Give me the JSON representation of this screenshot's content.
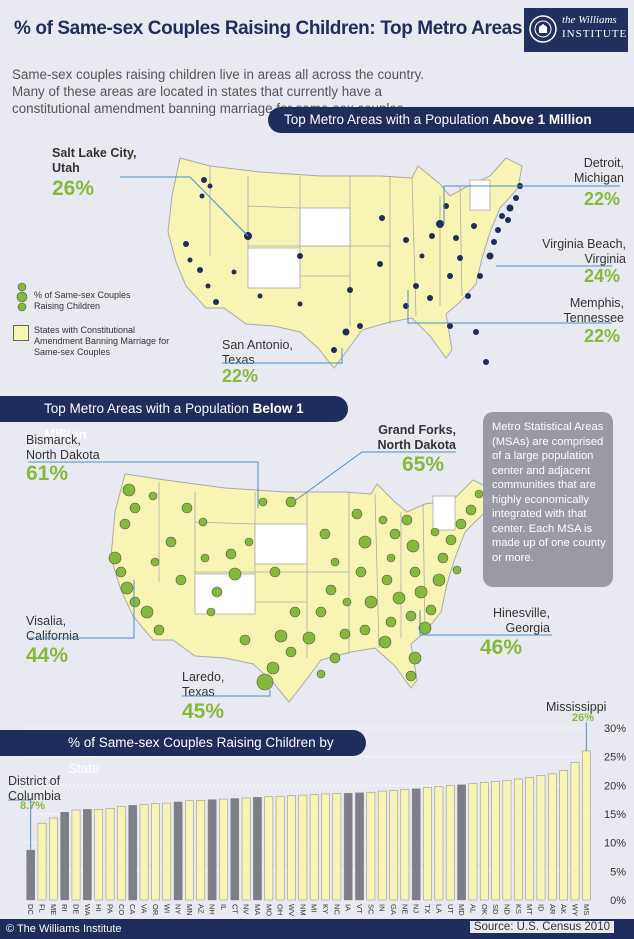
{
  "header": {
    "title": "% of Same-sex Couples Raising Children: Top Metro Areas (MSAs)",
    "logo_line1": "the Williams",
    "logo_line2": "INSTITUTE"
  },
  "intro": "Same-sex couples raising children live in areas all across the country. Many of these areas are located in states that currently have a constitutional amendment banning marriage for same-sex couples.",
  "section_above": {
    "label_prefix": "Top Metro Areas with a Population ",
    "label_bold": "Above 1 Million",
    "callouts": [
      {
        "city_line1": "Salt Lake City,",
        "city_line2": "Utah",
        "pct": "26%"
      },
      {
        "city_line1": "Detroit,",
        "city_line2": "Michigan",
        "pct": "22%"
      },
      {
        "city_line1": "Virginia Beach,",
        "city_line2": "Virginia",
        "pct": "24%"
      },
      {
        "city_line1": "Memphis,",
        "city_line2": "Tennessee",
        "pct": "22%"
      },
      {
        "city_line1": "San Antonio,",
        "city_line2": "Texas",
        "pct": "22%"
      }
    ]
  },
  "legend": {
    "dots_line1": "% of Same-sex Couples",
    "dots_line2": "Raising Children",
    "states_line1": "States with Constitutional",
    "states_line2": "Amendment Banning Marriage for",
    "states_line3": "Same-sex Couples"
  },
  "section_below": {
    "label_prefix": "Top Metro Areas with a Population ",
    "label_bold": "Below 1 Million",
    "callouts": [
      {
        "city_line1": "Bismarck,",
        "city_line2": "North Dakota",
        "pct": "61%"
      },
      {
        "city_line1": "Grand Forks,",
        "city_line2": "North Dakota",
        "pct": "65%"
      },
      {
        "city_line1": "Visalia,",
        "city_line2": "California",
        "pct": "44%"
      },
      {
        "city_line1": "Hinesville,",
        "city_line2": "Georgia",
        "pct": "46%"
      },
      {
        "city_line1": "Laredo,",
        "city_line2": "Texas",
        "pct": "45%"
      }
    ]
  },
  "msa_note": "Metro Statistical Areas (MSAs) are comprised of a large population center and adjacent communities that are highly economically integrated with that center. Each MSA is made up of one county or more.",
  "colors": {
    "navy": "#1f2d5c",
    "green": "#86b83c",
    "map_fill": "#f8f5b4",
    "bar_yellow": "#f8f5b4",
    "bar_gray": "#7e7e86"
  },
  "chart_data": {
    "type": "bar",
    "title": "% of Same-sex Couples Raising Children by State",
    "categories": [
      "DC",
      "FL",
      "ME",
      "RI",
      "DE",
      "WA",
      "HI",
      "PA",
      "CO",
      "CA",
      "VA",
      "OR",
      "WI",
      "NY",
      "MN",
      "AZ",
      "NH",
      "IL",
      "CT",
      "NV",
      "MA",
      "MO",
      "OH",
      "WV",
      "NM",
      "MI",
      "KY",
      "NC",
      "IA",
      "VT",
      "SC",
      "IN",
      "GA",
      "NE",
      "NJ",
      "TX",
      "LA",
      "UT",
      "MD",
      "AL",
      "OK",
      "SD",
      "ND",
      "KS",
      "MT",
      "ID",
      "AR",
      "AK",
      "WY",
      "MS"
    ],
    "values": [
      8.7,
      13.4,
      14.3,
      15.3,
      15.7,
      15.8,
      15.8,
      16.0,
      16.3,
      16.5,
      16.7,
      16.8,
      16.9,
      17.1,
      17.3,
      17.4,
      17.5,
      17.6,
      17.7,
      17.8,
      17.9,
      18.0,
      18.1,
      18.2,
      18.3,
      18.4,
      18.5,
      18.6,
      18.6,
      18.7,
      18.8,
      19.0,
      19.1,
      19.3,
      19.4,
      19.6,
      19.8,
      20.0,
      20.1,
      20.3,
      20.5,
      20.7,
      20.9,
      21.1,
      21.4,
      21.7,
      22.0,
      22.6,
      24.0,
      26.0
    ],
    "gray_flags": [
      1,
      0,
      0,
      1,
      0,
      1,
      0,
      0,
      0,
      1,
      0,
      0,
      0,
      1,
      0,
      0,
      1,
      0,
      1,
      0,
      1,
      0,
      0,
      0,
      0,
      0,
      0,
      0,
      1,
      1,
      0,
      0,
      0,
      0,
      1,
      0,
      0,
      0,
      1,
      0,
      0,
      0,
      0,
      0,
      0,
      0,
      0,
      0,
      0,
      0
    ],
    "ylim": [
      0,
      30
    ],
    "yticks": [
      "0%",
      "5%",
      "10%",
      "15%",
      "20%",
      "25%",
      "30%"
    ],
    "annotations": [
      {
        "label_line1": "District of",
        "label_line2": "Columbia",
        "value": "8.7%"
      },
      {
        "label_line1": "Mississippi",
        "label_line2": "",
        "value": "26%"
      }
    ],
    "source": "Source: U.S. Census 2010"
  },
  "footer": {
    "copyright": "© The Williams Institute"
  }
}
